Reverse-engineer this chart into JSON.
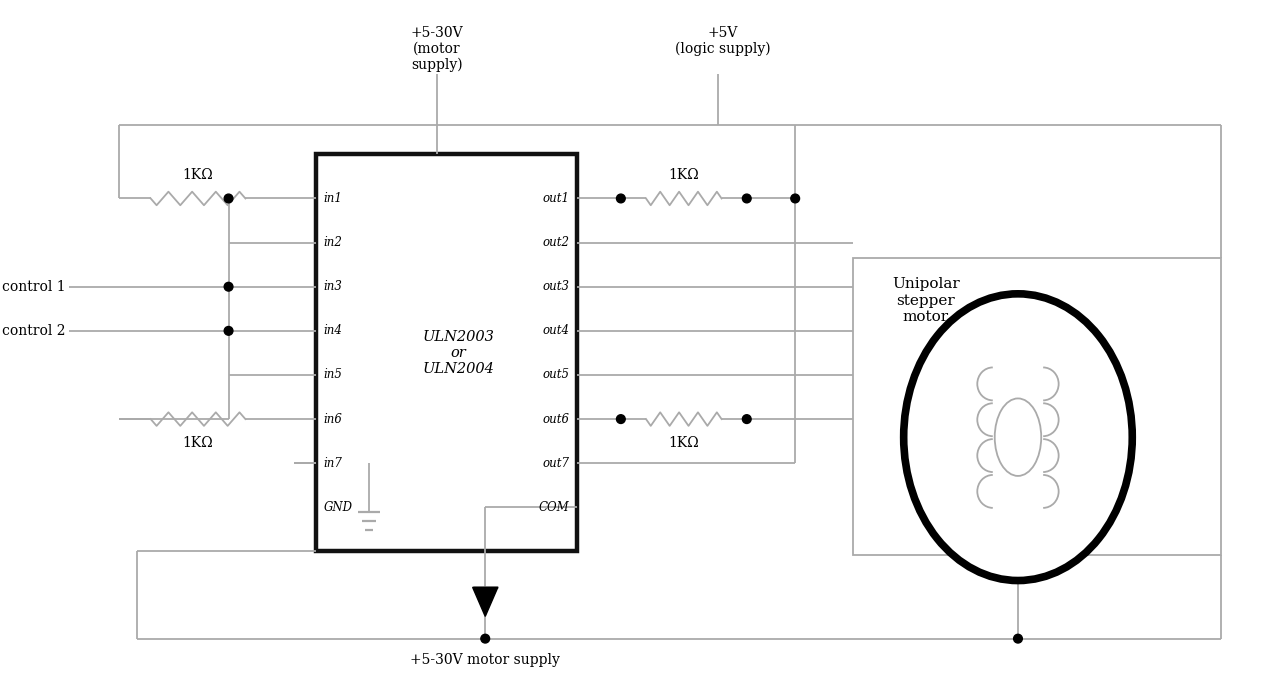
{
  "bg_color": "#ffffff",
  "line_color": "#aaaaaa",
  "dark_line_color": "#111111",
  "ic_label": "ULN2003\nor\nULN2004",
  "ic_inputs": [
    "in1",
    "in2",
    "in3",
    "in4",
    "in5",
    "in6",
    "in7",
    "GND"
  ],
  "ic_outputs": [
    "out1",
    "out2",
    "out3",
    "out4",
    "out5",
    "out6",
    "out7",
    "COM"
  ],
  "supply_top_label": "+5-30V\n(motor\nsupply)",
  "supply_top2_label": "+5V\n(logic supply)",
  "supply_bot_label": "+5-30V motor supply",
  "motor_label": "Unipolar\nstepper\nmotor",
  "control1_label": "control 1",
  "control2_label": "control 2",
  "res_label": "1KΩ"
}
